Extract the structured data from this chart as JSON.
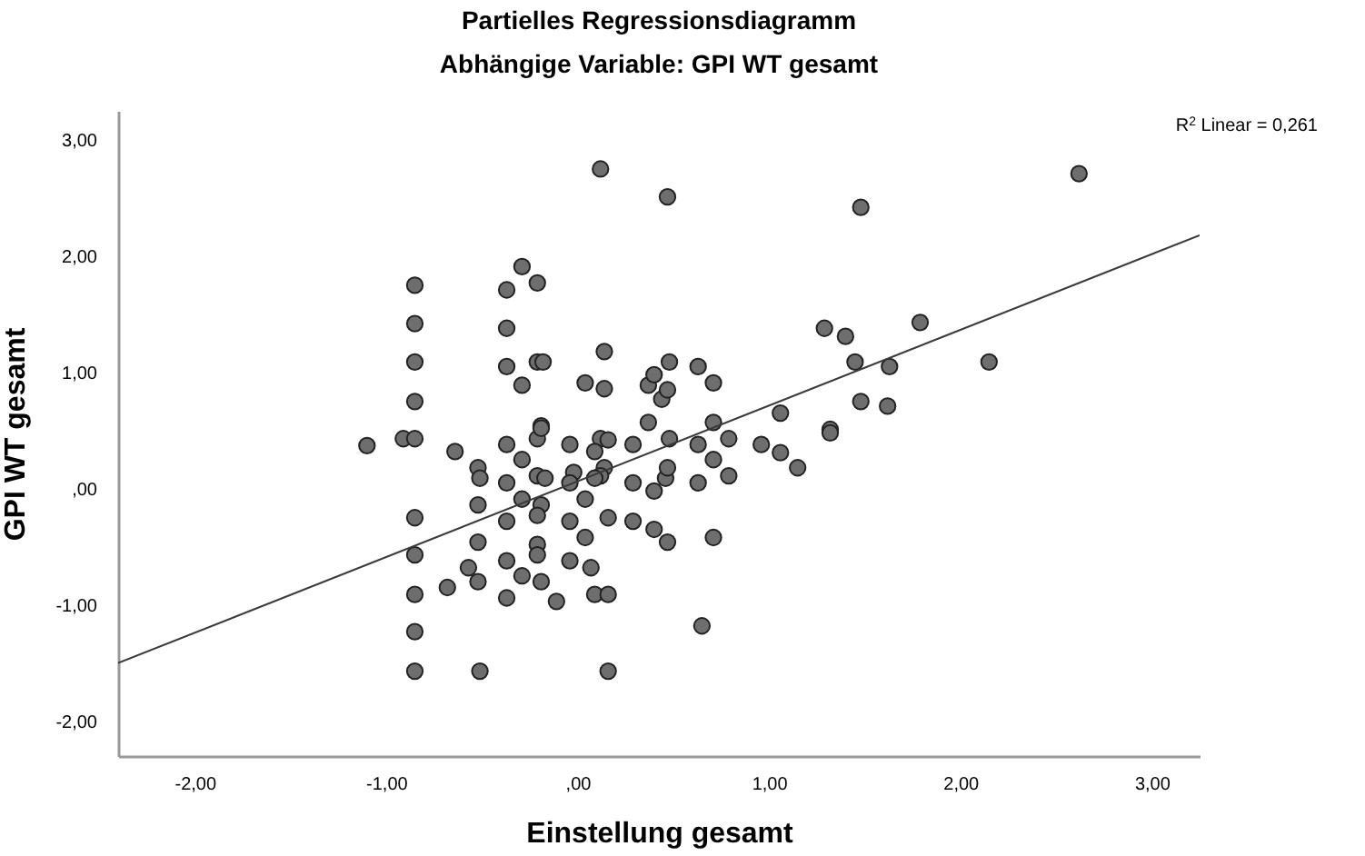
{
  "chart_data": {
    "type": "scatter",
    "title": "Partielles Regressionsdiagramm",
    "subtitle": "Abhängige Variable: GPI WT gesamt",
    "xlabel": "Einstellung gesamt",
    "ylabel": "GPI WT gesamt",
    "annotations": [
      "R$^{2}$ Linear = 0,261"
    ],
    "xlim": [
      -2.4,
      3.25
    ],
    "ylim": [
      -2.3,
      3.25
    ],
    "xticks": [
      {
        "value": -2,
        "label": "-2,00"
      },
      {
        "value": -1,
        "label": "-1,00"
      },
      {
        "value": 0,
        "label": ",00"
      },
      {
        "value": 1,
        "label": "1,00"
      },
      {
        "value": 2,
        "label": "2,00"
      },
      {
        "value": 3,
        "label": "3,00"
      }
    ],
    "yticks": [
      {
        "value": -2,
        "label": "-2,00"
      },
      {
        "value": -1,
        "label": "-1,00"
      },
      {
        "value": 0,
        "label": ",00"
      },
      {
        "value": 1,
        "label": "1,00"
      },
      {
        "value": 2,
        "label": "2,00"
      },
      {
        "value": 3,
        "label": "3,00"
      }
    ],
    "marker": "circle",
    "grid": false,
    "series": [
      {
        "type": "scatter",
        "color": "#6e6e6e",
        "x": [
          0.12,
          -0.85,
          -0.37,
          -0.29,
          -0.21,
          -0.85,
          -0.37,
          0.14,
          -0.85,
          -0.37,
          -0.21,
          -0.18,
          -0.29,
          0.04,
          0.14,
          0.37,
          0.4,
          0.37,
          -0.19,
          -0.85,
          0.44,
          0.47,
          1.48,
          2.62,
          1.29,
          1.4,
          1.79,
          1.45,
          1.63,
          2.15,
          0.48,
          0.63,
          0.71,
          0.47,
          0.71,
          1.06,
          1.48,
          1.62,
          1.32,
          -1.1,
          -0.91,
          -0.85,
          -0.64,
          -0.52,
          -0.51,
          -0.52,
          -0.37,
          -0.29,
          -0.21,
          -0.19,
          -0.21,
          -0.17,
          -0.37,
          -0.29,
          -0.19,
          -0.37,
          -0.21,
          -0.04,
          -0.02,
          -0.04,
          0.04,
          -0.04,
          0.04,
          -0.04,
          0.07,
          0.12,
          0.16,
          0.09,
          0.14,
          0.12,
          0.09,
          0.16,
          0.29,
          0.29,
          0.29,
          0.4,
          0.4,
          0.46,
          -0.85,
          -0.85,
          -0.85,
          -0.85,
          -0.85,
          -0.52,
          -0.57,
          -0.52,
          -0.68,
          -0.37,
          -0.37,
          -0.29,
          -0.21,
          -0.21,
          -0.19,
          -0.11,
          0.09,
          0.16,
          -0.51,
          0.16,
          0.48,
          0.63,
          0.79,
          0.96,
          1.06,
          1.32,
          1.15,
          0.71,
          0.47,
          0.63,
          0.79,
          0.47,
          0.71,
          0.65
        ],
        "values": [
          2.75,
          1.75,
          1.71,
          1.91,
          1.77,
          1.42,
          1.38,
          1.18,
          1.09,
          1.05,
          1.09,
          1.09,
          0.89,
          0.91,
          0.86,
          0.89,
          0.98,
          0.57,
          0.54,
          0.75,
          0.77,
          2.51,
          2.42,
          2.71,
          1.38,
          1.31,
          1.43,
          1.09,
          1.05,
          1.09,
          1.09,
          1.05,
          0.91,
          0.85,
          0.57,
          0.65,
          0.75,
          0.71,
          0.51,
          0.37,
          0.43,
          0.43,
          0.32,
          0.18,
          0.09,
          -0.14,
          0.38,
          0.25,
          0.43,
          0.52,
          0.11,
          0.09,
          0.05,
          -0.09,
          -0.14,
          -0.28,
          -0.23,
          0.38,
          0.14,
          0.05,
          -0.09,
          -0.28,
          -0.42,
          -0.62,
          -0.68,
          0.43,
          0.42,
          0.32,
          0.18,
          0.11,
          0.09,
          -0.25,
          0.38,
          0.05,
          -0.28,
          -0.02,
          -0.35,
          0.09,
          -0.25,
          -0.57,
          -0.91,
          -1.23,
          -1.57,
          -0.46,
          -0.68,
          -0.8,
          -0.85,
          -0.62,
          -0.94,
          -0.75,
          -0.48,
          -0.57,
          -0.8,
          -0.97,
          -0.91,
          -0.91,
          -1.57,
          -1.57,
          0.43,
          0.38,
          0.43,
          0.38,
          0.31,
          0.48,
          0.18,
          0.25,
          0.18,
          0.05,
          0.11,
          -0.46,
          -0.42,
          -1.18
        ]
      },
      {
        "type": "line",
        "marker": "none",
        "color": "#3a3a3a",
        "x": [
          -2.4,
          3.25
        ],
        "values": [
          -1.5,
          2.18
        ]
      }
    ]
  }
}
